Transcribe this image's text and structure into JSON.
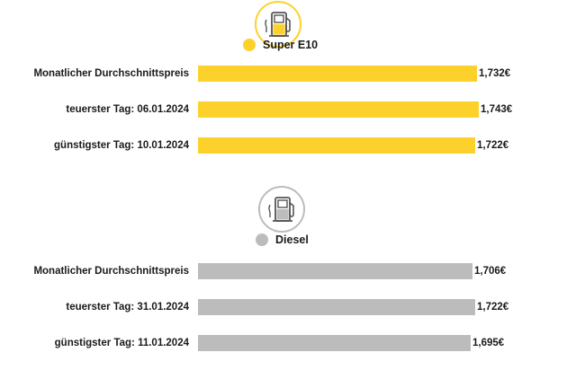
{
  "chart_data": [
    {
      "type": "bar",
      "orientation": "horizontal",
      "legend": "Super E10",
      "color": "#FDD12C",
      "icon": "fuel-pump-icon",
      "categories": [
        "Monatlicher Durchschnittspreis",
        "teuerster Tag: 06.01.2024",
        "günstigster Tag: 10.01.2024"
      ],
      "values": [
        1.732,
        1.743,
        1.722
      ],
      "value_labels": [
        "1,732€",
        "1,743€",
        "1,722€"
      ]
    },
    {
      "type": "bar",
      "orientation": "horizontal",
      "legend": "Diesel",
      "color": "#BDBCBC",
      "icon": "fuel-pump-icon",
      "categories": [
        "Monatlicher Durchschnittspreis",
        "teuerster Tag: 31.01.2024",
        "günstigster Tag: 11.01.2024"
      ],
      "values": [
        1.706,
        1.722,
        1.695
      ],
      "value_labels": [
        "1,706€",
        "1,722€",
        "1,695€"
      ]
    }
  ]
}
